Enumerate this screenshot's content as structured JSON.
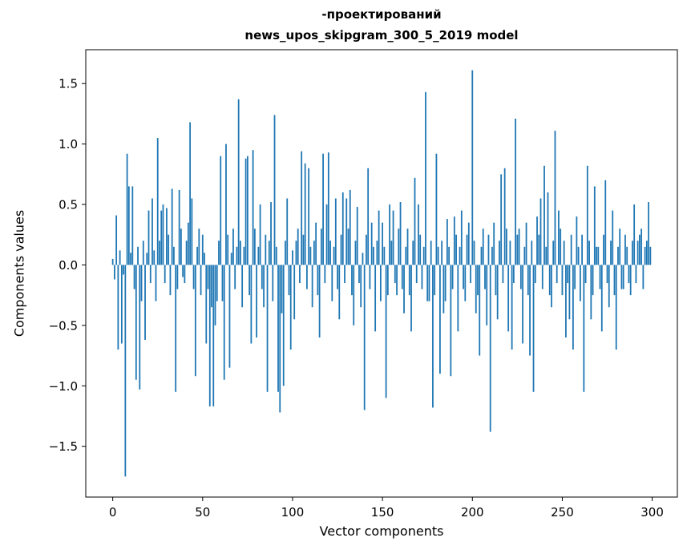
{
  "chart_data": {
    "type": "bar",
    "title": "-проектирований",
    "subtitle": "news_upos_skipgram_300_5_2019 model",
    "xlabel": "Vector components",
    "ylabel": "Components values",
    "grid": false,
    "legend": null,
    "bar_color": "#1f77b4",
    "xlim": [
      -15,
      314
    ],
    "ylim": [
      -1.92,
      1.78
    ],
    "xtick_values": [
      0,
      50,
      100,
      150,
      200,
      250,
      300
    ],
    "xtick_labels": [
      "0",
      "50",
      "100",
      "150",
      "200",
      "250",
      "300"
    ],
    "ytick_values": [
      1.5,
      1.0,
      0.5,
      0.0,
      -0.5,
      -1.0,
      -1.5
    ],
    "ytick_labels": [
      "1.5",
      "1.0",
      "0.5",
      "0.0",
      "−0.5",
      "−1.0",
      "−1.5"
    ],
    "values": [
      0.05,
      -0.12,
      0.41,
      -0.7,
      0.12,
      -0.65,
      -0.08,
      -1.75,
      0.92,
      0.65,
      0.1,
      0.65,
      -0.2,
      -0.95,
      0.15,
      -1.03,
      -0.3,
      0.2,
      -0.62,
      0.1,
      0.45,
      -0.15,
      0.55,
      0.12,
      -0.3,
      1.05,
      0.2,
      0.45,
      0.5,
      -0.15,
      0.47,
      0.25,
      -0.25,
      0.63,
      0.15,
      -1.05,
      -0.2,
      0.62,
      0.3,
      -0.1,
      -0.15,
      0.2,
      0.35,
      1.18,
      0.55,
      -0.2,
      -0.92,
      0.15,
      0.3,
      -0.25,
      0.25,
      0.1,
      -0.65,
      -0.2,
      -1.17,
      -0.35,
      -1.17,
      -0.5,
      -0.3,
      0.2,
      0.9,
      -0.3,
      -0.95,
      1.0,
      0.25,
      -0.85,
      0.1,
      0.3,
      -0.2,
      0.15,
      1.37,
      0.2,
      -0.35,
      0.15,
      0.88,
      0.9,
      -0.25,
      -0.65,
      0.95,
      0.3,
      -0.6,
      0.15,
      0.5,
      -0.2,
      -0.35,
      0.25,
      -1.05,
      0.2,
      0.52,
      -0.3,
      1.24,
      0.15,
      -1.05,
      -1.22,
      -0.4,
      -1.0,
      0.2,
      0.55,
      -0.25,
      -0.7,
      0.12,
      -0.45,
      0.2,
      0.3,
      -0.15,
      0.94,
      0.25,
      0.84,
      -0.2,
      0.8,
      0.15,
      -0.35,
      0.2,
      0.35,
      -0.25,
      -0.6,
      0.3,
      0.92,
      -0.15,
      0.5,
      0.93,
      0.2,
      -0.3,
      0.15,
      0.55,
      -0.2,
      -0.45,
      0.25,
      0.6,
      -0.15,
      0.55,
      0.3,
      0.62,
      -0.25,
      -0.5,
      0.2,
      0.48,
      -0.15,
      -0.35,
      0.1,
      -1.2,
      0.25,
      0.8,
      -0.2,
      0.35,
      0.15,
      -0.55,
      0.2,
      0.45,
      -0.3,
      0.35,
      0.15,
      -1.1,
      -0.25,
      0.5,
      0.2,
      0.45,
      -0.15,
      -0.25,
      0.3,
      0.52,
      -0.2,
      -0.4,
      0.15,
      0.3,
      -0.25,
      -0.55,
      0.2,
      0.72,
      -0.15,
      0.5,
      0.25,
      -0.2,
      0.15,
      1.43,
      -0.3,
      -0.3,
      0.2,
      -1.18,
      -0.25,
      0.92,
      0.15,
      -0.9,
      0.2,
      -0.4,
      -0.3,
      0.38,
      0.15,
      -0.92,
      -0.2,
      0.4,
      0.25,
      -0.55,
      0.15,
      0.45,
      -0.2,
      -0.3,
      0.25,
      0.35,
      -0.15,
      1.61,
      0.2,
      -0.4,
      -0.25,
      -0.75,
      0.15,
      0.3,
      -0.2,
      -0.5,
      0.25,
      -1.38,
      0.15,
      0.35,
      -0.25,
      -0.45,
      0.2,
      0.75,
      -0.15,
      0.8,
      0.3,
      -0.55,
      0.2,
      -0.7,
      -0.15,
      1.21,
      0.25,
      0.3,
      -0.2,
      -0.65,
      0.15,
      0.35,
      -0.25,
      -0.75,
      0.2,
      -1.05,
      -0.15,
      0.4,
      0.25,
      0.55,
      -0.2,
      0.82,
      0.15,
      0.6,
      -0.25,
      -0.35,
      0.2,
      1.11,
      -0.15,
      0.45,
      0.3,
      -0.25,
      0.2,
      -0.6,
      -0.15,
      -0.45,
      0.25,
      -0.7,
      -0.2,
      0.4,
      0.15,
      -0.3,
      0.25,
      -1.05,
      -0.15,
      0.82,
      0.2,
      -0.45,
      -0.25,
      0.65,
      0.15,
      0.15,
      -0.2,
      -0.55,
      0.25,
      0.7,
      -0.15,
      -0.35,
      0.2,
      0.45,
      -0.25,
      -0.7,
      0.15,
      0.3,
      -0.2,
      -0.2,
      0.25,
      0.15,
      -0.15,
      -0.25,
      0.2,
      0.5,
      -0.15,
      0.2,
      0.25,
      0.3,
      -0.2,
      0.15,
      0.2,
      0.52,
      0.15
    ]
  }
}
